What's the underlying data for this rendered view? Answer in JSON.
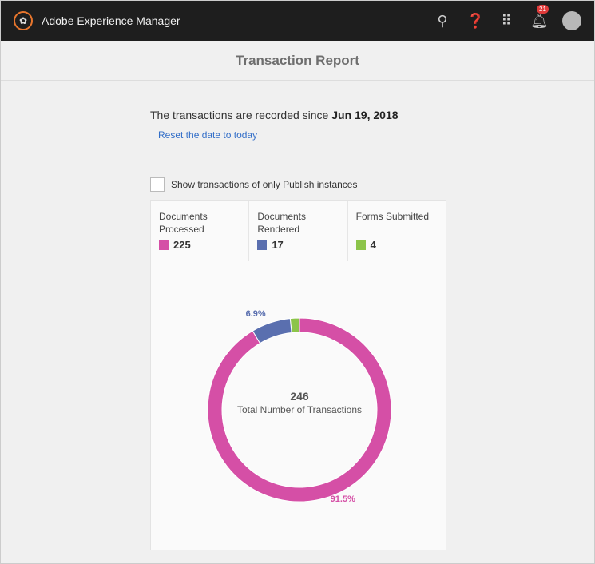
{
  "app": {
    "title": "Adobe Experience Manager",
    "notification_count": "21"
  },
  "page": {
    "title": "Transaction Report",
    "since_prefix": "The transactions are recorded since",
    "since_date": "Jun 19, 2018",
    "reset_link": "Reset the date to today",
    "checkbox_label": "Show transactions of only Publish instances",
    "checkbox_checked": false
  },
  "stats": [
    {
      "label": "Documents Processed",
      "value": "225",
      "color": "#d54fa6"
    },
    {
      "label": "Documents Rendered",
      "value": "17",
      "color": "#5a6faf"
    },
    {
      "label": "Forms Submitted",
      "value": "4",
      "color": "#8cc44a"
    }
  ],
  "chart_data": {
    "type": "pie",
    "donut": true,
    "categories": [
      "Documents Processed",
      "Documents Rendered",
      "Forms Submitted"
    ],
    "values": [
      225,
      17,
      4
    ],
    "colors": [
      "#d54fa6",
      "#5a6faf",
      "#8cc44a"
    ],
    "data_labels": [
      "91.5%",
      "6.9%",
      ""
    ],
    "center_value": "246",
    "center_label": "Total Number of Transactions"
  }
}
